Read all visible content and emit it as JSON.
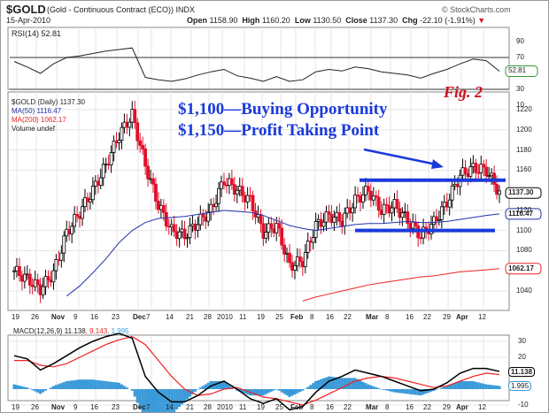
{
  "header": {
    "symbol": "$GOLD",
    "description": "(Gold - Continuous Contract (ECO)) INDX",
    "date": "15-Apr-2010",
    "source": "© StockCharts.com",
    "open_label": "Open",
    "open": "1158.90",
    "high_label": "High",
    "high": "1160.20",
    "low_label": "Low",
    "low": "1130.50",
    "close_label": "Close",
    "close": "1137.30",
    "chg_label": "Chg",
    "chg": "-22.10 (-1.91%)"
  },
  "rsi": {
    "label": "RSI(14) 52.81",
    "current": "52.81",
    "levels": [
      70,
      30
    ],
    "ticks": [
      "90",
      "70",
      "30",
      "10"
    ]
  },
  "main": {
    "legend": [
      "$GOLD (Daily) 1137.30",
      "MA(50) 1116.47",
      "MA(200) 1062.17",
      "Volume undef"
    ],
    "fig_label": "Fig. 2",
    "annotation1": "$1,100—Buying Opportunity",
    "annotation2": "$1,150—Profit Taking Point",
    "price_tag": "1137.30",
    "ma50_tag": "1116.47",
    "ma200_tag": "1062.17",
    "yticks": [
      "1220",
      "1200",
      "1180",
      "1160",
      "1120",
      "1100",
      "1080",
      "1040"
    ],
    "support": 1100,
    "resistance": 1150
  },
  "xticks": [
    "19",
    "26",
    "Nov",
    "9",
    "16",
    "23",
    "Dec",
    "7",
    "14",
    "21",
    "28",
    "2010",
    "11",
    "19",
    "25",
    "Feb",
    "8",
    "16",
    "22",
    "Mar",
    "8",
    "16",
    "22",
    "29",
    "Apr",
    "12"
  ],
  "macd": {
    "label_a": "MACD(12,26,9) 11.138",
    "label_b": ", 9.143",
    "label_c": ", 1.995",
    "tag_macd": "11.138",
    "tag_hist": "1.995",
    "ticks": [
      "30",
      "20",
      "-10"
    ]
  },
  "colors": {
    "up": "#000000",
    "down": "#e0102a",
    "ma50": "#2233aa",
    "ma200": "#ee2222",
    "annot": "#1a3adb",
    "hist": "#3a9ad9"
  },
  "chart_data": {
    "type": "candlestick",
    "title": "$GOLD (Daily)",
    "ylim": [
      1030,
      1235
    ],
    "closes_weekly": [
      1060,
      1052,
      1042,
      1058,
      1098,
      1118,
      1140,
      1165,
      1195,
      1215,
      1165,
      1125,
      1100,
      1095,
      1108,
      1120,
      1150,
      1140,
      1130,
      1098,
      1105,
      1065,
      1070,
      1105,
      1115,
      1110,
      1130,
      1140,
      1120,
      1125,
      1110,
      1095,
      1108,
      1128,
      1155,
      1162,
      1160,
      1137.3
    ],
    "ma50": [
      null,
      null,
      null,
      null,
      1035,
      1045,
      1058,
      1072,
      1088,
      1100,
      1108,
      1112,
      1113,
      1114,
      1116,
      1118,
      1120,
      1119,
      1118,
      1115,
      1110,
      1105,
      1102,
      1100,
      1102,
      1104,
      1106,
      1107,
      1107,
      1108,
      1109,
      1108,
      1108,
      1109,
      1111,
      1113,
      1115,
      1116.47
    ],
    "ma200": [
      null,
      null,
      null,
      null,
      null,
      null,
      null,
      null,
      null,
      null,
      null,
      null,
      null,
      null,
      null,
      null,
      null,
      null,
      null,
      null,
      null,
      null,
      1030,
      1034,
      1037,
      1040,
      1043,
      1046,
      1048,
      1050,
      1052,
      1054,
      1055,
      1057,
      1059,
      1060,
      1061,
      1062.17
    ],
    "rsi": [
      65,
      58,
      50,
      62,
      70,
      72,
      75,
      78,
      80,
      82,
      45,
      42,
      40,
      43,
      48,
      52,
      55,
      47,
      44,
      40,
      46,
      40,
      42,
      52,
      55,
      53,
      58,
      56,
      52,
      50,
      48,
      44,
      50,
      55,
      62,
      68,
      66,
      52.81
    ],
    "macd": [
      21,
      19,
      12,
      16,
      21,
      26,
      30,
      33,
      35,
      32,
      8,
      -2,
      -8,
      -8,
      -4,
      2,
      5,
      0,
      -6,
      -9,
      -6,
      -13,
      -11,
      -2,
      5,
      8,
      12,
      10,
      8,
      5,
      2,
      -1,
      0,
      4,
      10,
      13,
      13,
      11.138
    ],
    "signal": [
      18,
      18,
      15,
      14,
      16,
      20,
      24,
      28,
      31,
      33,
      28,
      18,
      8,
      0,
      -4,
      -3,
      0,
      1,
      -2,
      -5,
      -6,
      -8,
      -10,
      -7,
      -3,
      1,
      5,
      7,
      8,
      7,
      5,
      3,
      1,
      2,
      5,
      8,
      10,
      9.143
    ]
  }
}
